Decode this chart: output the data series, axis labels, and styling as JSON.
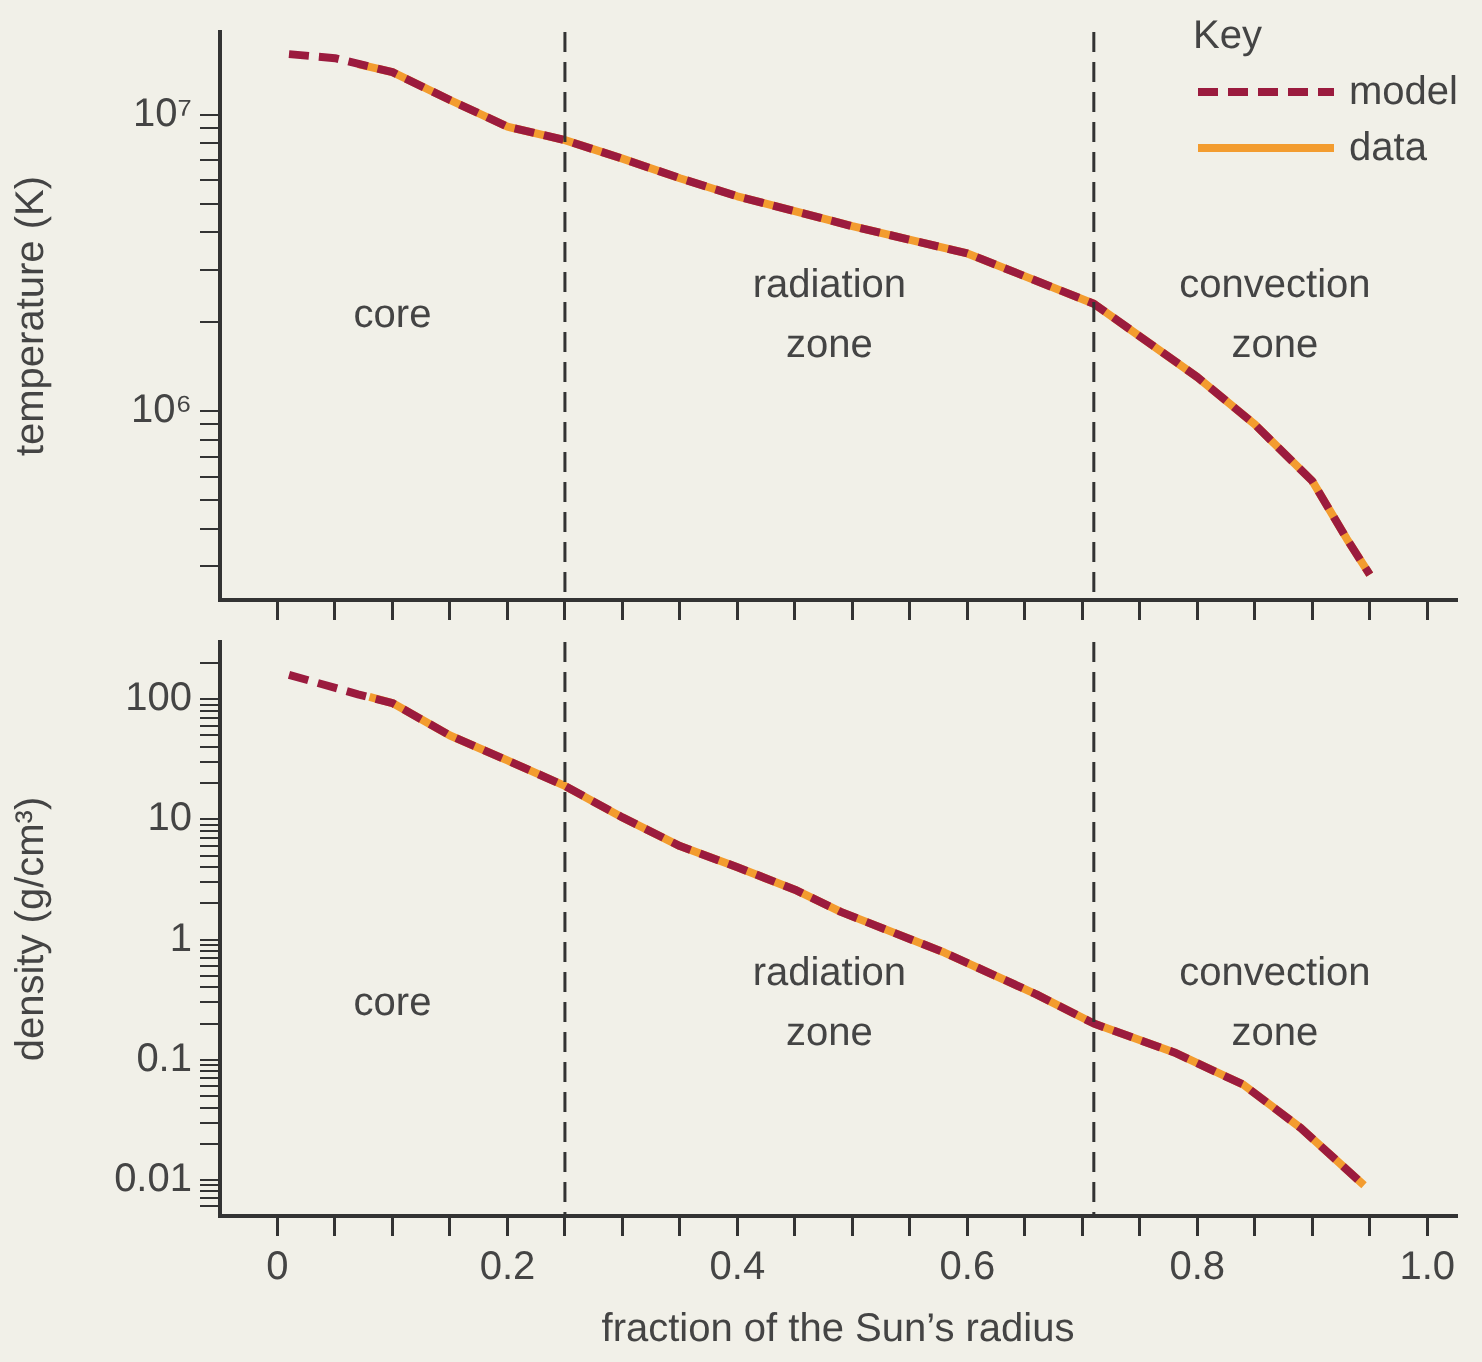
{
  "chart_data": [
    {
      "type": "line",
      "ylabel": "temperature (K)",
      "legend_title": "Key",
      "legend": "top right",
      "log": "y",
      "grid": false,
      "marker": "none",
      "tick_labels": "y",
      "xlim": [
        -0.05,
        1.025
      ],
      "xticks": [
        {
          "value": 0,
          "label": null
        },
        {
          "value": 0.05,
          "label": null
        },
        {
          "value": 0.1,
          "label": null
        },
        {
          "value": 0.15,
          "label": null
        },
        {
          "value": 0.2,
          "label": null
        },
        {
          "value": 0.25,
          "label": null
        },
        {
          "value": 0.3,
          "label": null
        },
        {
          "value": 0.35,
          "label": null
        },
        {
          "value": 0.4,
          "label": null
        },
        {
          "value": 0.45,
          "label": null
        },
        {
          "value": 0.5,
          "label": null
        },
        {
          "value": 0.55,
          "label": null
        },
        {
          "value": 0.6,
          "label": null
        },
        {
          "value": 0.65,
          "label": null
        },
        {
          "value": 0.7,
          "label": null
        },
        {
          "value": 0.75,
          "label": null
        },
        {
          "value": 0.8,
          "label": null
        },
        {
          "value": 0.85,
          "label": null
        },
        {
          "value": 0.9,
          "label": null
        },
        {
          "value": 0.95,
          "label": null
        },
        {
          "value": 1,
          "label": null
        }
      ],
      "ylim": [
        230000,
        19000000
      ],
      "yticks": [
        {
          "value": 300000,
          "label": null
        },
        {
          "value": 400000,
          "label": null
        },
        {
          "value": 500000,
          "label": null
        },
        {
          "value": 600000,
          "label": null
        },
        {
          "value": 700000,
          "label": null
        },
        {
          "value": 800000,
          "label": null
        },
        {
          "value": 900000,
          "label": null
        },
        {
          "value": 1000000,
          "label": "10⁶"
        },
        {
          "value": 2000000,
          "label": null
        },
        {
          "value": 3000000,
          "label": null
        },
        {
          "value": 4000000,
          "label": null
        },
        {
          "value": 5000000,
          "label": null
        },
        {
          "value": 6000000,
          "label": null
        },
        {
          "value": 7000000,
          "label": null
        },
        {
          "value": 8000000,
          "label": null
        },
        {
          "value": 9000000,
          "label": null
        },
        {
          "value": 10000000,
          "label": "10⁷"
        }
      ],
      "series": [
        {
          "name": "model",
          "color": "#9b1b3e",
          "line_style": "dashed",
          "x": [
            0.01,
            0.05,
            0.1,
            0.15,
            0.2,
            0.25,
            0.3,
            0.35,
            0.4,
            0.5,
            0.6,
            0.71,
            0.8,
            0.85,
            0.9,
            0.93,
            0.95
          ],
          "values": [
            16000000,
            15500000,
            13900000,
            11200000,
            9100000,
            8200000,
            7100000,
            6100000,
            5300000,
            4200000,
            3400000,
            2300000,
            1300000,
            900000,
            580000,
            370000,
            280000
          ]
        },
        {
          "name": "data",
          "color": "#f39c2f",
          "line_style": "solid",
          "x": [
            0.07,
            0.1,
            0.15,
            0.2,
            0.25,
            0.3,
            0.35,
            0.4,
            0.5,
            0.6,
            0.71,
            0.8,
            0.85,
            0.9,
            0.93,
            0.95
          ],
          "values": [
            14800000,
            13900000,
            11200000,
            9100000,
            8200000,
            7100000,
            6100000,
            5300000,
            4200000,
            3400000,
            2300000,
            1300000,
            900000,
            580000,
            370000,
            280000
          ]
        }
      ],
      "ref_lines": [
        {
          "axis": "x",
          "value": 0.25,
          "color": "#333333",
          "line_style": "dashed"
        },
        {
          "axis": "x",
          "value": 0.71,
          "color": "#333333",
          "line_style": "dashed"
        }
      ],
      "annotations": [
        "core",
        "radiation zone",
        "convection zone"
      ]
    },
    {
      "type": "line",
      "xlabel": "fraction of the Sun’s radius",
      "ylabel": "density (g/cm³)",
      "legend": false,
      "log": "y",
      "grid": false,
      "marker": "none",
      "xlim": [
        -0.05,
        1.025
      ],
      "xticks": [
        0,
        {
          "value": 0.05,
          "label": null
        },
        {
          "value": 0.1,
          "label": null
        },
        {
          "value": 0.15,
          "label": null
        },
        0.2,
        {
          "value": 0.25,
          "label": null
        },
        {
          "value": 0.3,
          "label": null
        },
        {
          "value": 0.35,
          "label": null
        },
        0.4,
        {
          "value": 0.45,
          "label": null
        },
        {
          "value": 0.5,
          "label": null
        },
        {
          "value": 0.55,
          "label": null
        },
        0.6,
        {
          "value": 0.65,
          "label": null
        },
        {
          "value": 0.7,
          "label": null
        },
        {
          "value": 0.75,
          "label": null
        },
        0.8,
        {
          "value": 0.85,
          "label": null
        },
        {
          "value": 0.9,
          "label": null
        },
        {
          "value": 0.95,
          "label": null
        },
        {
          "value": 1,
          "label": "1.0"
        }
      ],
      "ylim": [
        0.005,
        300
      ],
      "yticks": [
        {
          "value": 0.006,
          "label": null
        },
        {
          "value": 0.007,
          "label": null
        },
        {
          "value": 0.008,
          "label": null
        },
        {
          "value": 0.009,
          "label": null
        },
        0.01,
        {
          "value": 0.02,
          "label": null
        },
        {
          "value": 0.03,
          "label": null
        },
        {
          "value": 0.04,
          "label": null
        },
        {
          "value": 0.05,
          "label": null
        },
        {
          "value": 0.06,
          "label": null
        },
        {
          "value": 0.07,
          "label": null
        },
        {
          "value": 0.08,
          "label": null
        },
        {
          "value": 0.09,
          "label": null
        },
        0.1,
        {
          "value": 0.2,
          "label": null
        },
        {
          "value": 0.3,
          "label": null
        },
        {
          "value": 0.4,
          "label": null
        },
        {
          "value": 0.5,
          "label": null
        },
        {
          "value": 0.6,
          "label": null
        },
        {
          "value": 0.7,
          "label": null
        },
        {
          "value": 0.8,
          "label": null
        },
        {
          "value": 0.9,
          "label": null
        },
        1,
        {
          "value": 2,
          "label": null
        },
        {
          "value": 3,
          "label": null
        },
        {
          "value": 4,
          "label": null
        },
        {
          "value": 5,
          "label": null
        },
        {
          "value": 6,
          "label": null
        },
        {
          "value": 7,
          "label": null
        },
        {
          "value": 8,
          "label": null
        },
        {
          "value": 9,
          "label": null
        },
        10,
        {
          "value": 20,
          "label": null
        },
        {
          "value": 30,
          "label": null
        },
        {
          "value": 40,
          "label": null
        },
        {
          "value": 50,
          "label": null
        },
        {
          "value": 60,
          "label": null
        },
        {
          "value": 70,
          "label": null
        },
        {
          "value": 80,
          "label": null
        },
        {
          "value": 90,
          "label": null
        },
        100,
        {
          "value": 200,
          "label": null
        }
      ],
      "series": [
        {
          "color": "#9b1b3e",
          "line_style": "dashed",
          "x": [
            0.01,
            0.07,
            0.1,
            0.15,
            0.2,
            0.25,
            0.3,
            0.35,
            0.4,
            0.45,
            0.49,
            0.58,
            0.66,
            0.71,
            0.78,
            0.84,
            0.89,
            0.945
          ],
          "values": [
            160,
            110,
            93,
            50,
            31,
            19,
            10.4,
            6,
            4,
            2.6,
            1.7,
            0.78,
            0.35,
            0.2,
            0.115,
            0.062,
            0.027,
            0.009
          ]
        },
        {
          "color": "#f39c2f",
          "line_style": "solid",
          "x": [
            0.08,
            0.1,
            0.15,
            0.2,
            0.25,
            0.3,
            0.35,
            0.4,
            0.45,
            0.49,
            0.58,
            0.66,
            0.71,
            0.78,
            0.84,
            0.89,
            0.945
          ],
          "values": [
            105,
            93,
            50,
            31,
            19,
            10.4,
            6,
            4,
            2.6,
            1.7,
            0.78,
            0.35,
            0.2,
            0.115,
            0.062,
            0.027,
            0.009
          ]
        }
      ],
      "ref_lines": [
        {
          "axis": "x",
          "value": 0.25,
          "color": "#333333",
          "line_style": "dashed"
        },
        {
          "axis": "x",
          "value": 0.71,
          "color": "#333333",
          "line_style": "dashed"
        }
      ],
      "annotations": [
        "core",
        "radiation zone",
        "convection zone"
      ]
    }
  ]
}
